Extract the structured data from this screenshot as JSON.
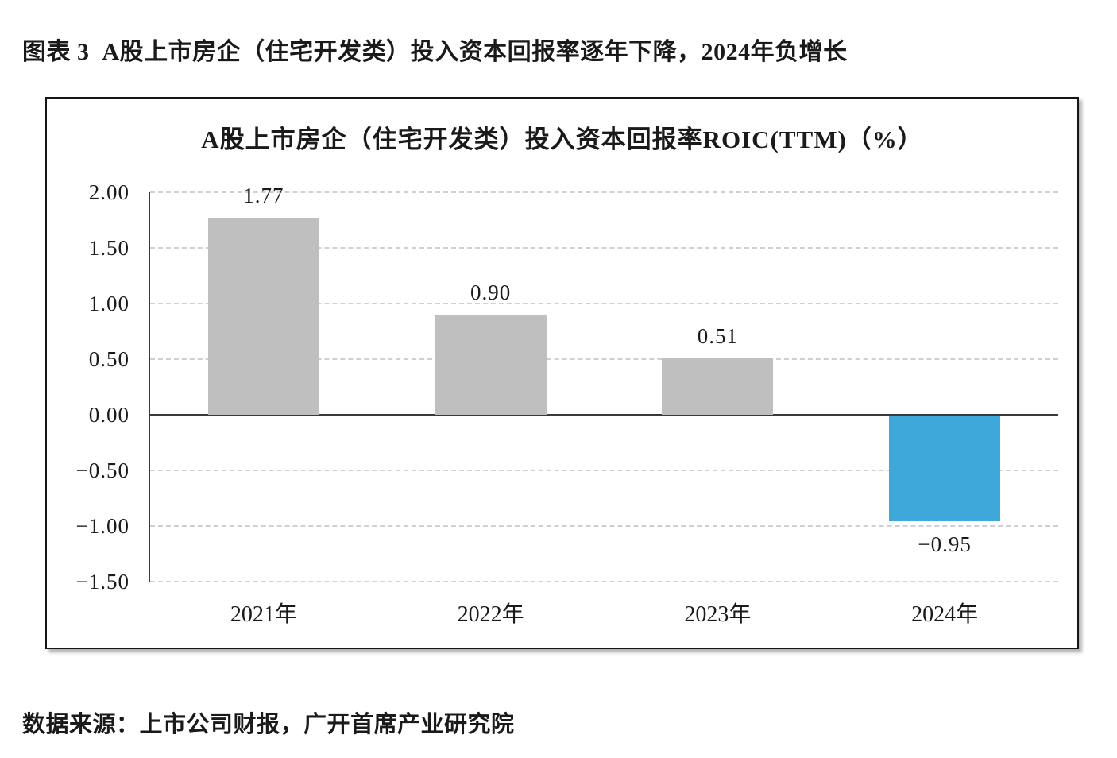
{
  "page": {
    "caption": "图表 3  A股上市房企（住宅开发类）投入资本回报率逐年下降，2024年负增长",
    "source": "数据来源：上市公司财报，广开首席产业研究院"
  },
  "chart_data": {
    "type": "bar",
    "title": "A股上市房企（住宅开发类）投入资本回报率ROIC(TTM)（%）",
    "categories": [
      "2021年",
      "2022年",
      "2023年",
      "2024年"
    ],
    "values": [
      1.77,
      0.9,
      0.51,
      -0.95
    ],
    "value_labels": [
      "1.77",
      "0.90",
      "0.51",
      "−0.95"
    ],
    "ylim": [
      -1.5,
      2.0
    ],
    "y_ticks": [
      2.0,
      1.5,
      1.0,
      0.5,
      0.0,
      -0.5,
      -1.0,
      -1.5
    ],
    "y_tick_labels": [
      "2.00",
      "1.50",
      "1.00",
      "0.50",
      "0.00",
      "−0.50",
      "−1.00",
      "−1.50"
    ],
    "grid": "dashed-horizontal-at-each-0.50",
    "legend": "none",
    "colors": {
      "bar_default": "#BFBFBF",
      "bar_negative_highlight": "#3FA8DA",
      "gridline": "#D0D0D0",
      "axis": "#3A3A3A",
      "text": "#1A1A1A"
    }
  }
}
